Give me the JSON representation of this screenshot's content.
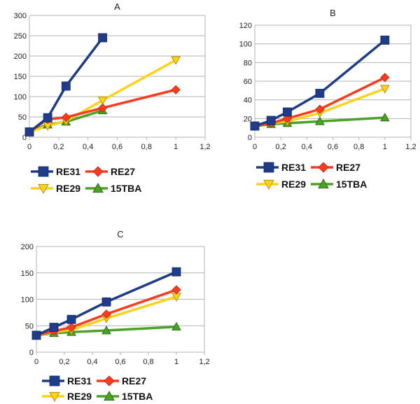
{
  "chart_data": [
    {
      "type": "line",
      "title": "A",
      "xlabel": "",
      "ylabel": "",
      "xlim": [
        0,
        1.2
      ],
      "ylim": [
        0,
        300
      ],
      "xticks": [
        "0",
        "0,2",
        "0,4",
        "0,6",
        "0,8",
        "1",
        "1,2"
      ],
      "yticks": [
        "0",
        "50",
        "100",
        "150",
        "200",
        "250",
        "300"
      ],
      "grid": "horizontal",
      "legend": "bottom",
      "series": [
        {
          "name": "RE31",
          "color": "#1f3c88",
          "marker": "square",
          "x": [
            0,
            0.125,
            0.25,
            0.5
          ],
          "y": [
            13,
            48,
            126,
            245
          ]
        },
        {
          "name": "RE27",
          "color": "#ff3b1f",
          "marker": "diamond",
          "x": [
            0,
            0.125,
            0.25,
            0.5,
            1
          ],
          "y": [
            13,
            44,
            49,
            72,
            117
          ]
        },
        {
          "name": "RE29",
          "color": "#ffd21a",
          "marker": "triangle-down",
          "x": [
            0,
            0.125,
            0.25,
            0.5,
            1
          ],
          "y": [
            13,
            28,
            40,
            91,
            190
          ]
        },
        {
          "name": "15TBA",
          "color": "#4aa326",
          "marker": "triangle-up",
          "x": [
            0,
            0.125,
            0.25,
            0.5
          ],
          "y": [
            13,
            31,
            38,
            66
          ]
        }
      ]
    },
    {
      "type": "line",
      "title": "B",
      "xlabel": "",
      "ylabel": "",
      "xlim": [
        0,
        1.2
      ],
      "ylim": [
        0,
        120
      ],
      "xticks": [
        "0",
        "0,2",
        "0,4",
        "0,6",
        "0,8",
        "1",
        "1,2"
      ],
      "yticks": [
        "0",
        "20",
        "40",
        "60",
        "80",
        "100",
        "120"
      ],
      "grid": "horizontal",
      "legend": "bottom",
      "series": [
        {
          "name": "RE31",
          "color": "#1f3c88",
          "marker": "square",
          "x": [
            0,
            0.125,
            0.25,
            0.5,
            1
          ],
          "y": [
            12,
            18,
            27,
            47,
            104
          ]
        },
        {
          "name": "RE27",
          "color": "#ff3b1f",
          "marker": "diamond",
          "x": [
            0,
            0.125,
            0.25,
            0.5,
            1
          ],
          "y": [
            12,
            15,
            20,
            30,
            64
          ]
        },
        {
          "name": "RE29",
          "color": "#ffd21a",
          "marker": "triangle-down",
          "x": [
            0,
            0.125,
            0.25,
            0.5,
            1
          ],
          "y": [
            12,
            15,
            17,
            26,
            52
          ]
        },
        {
          "name": "15TBA",
          "color": "#4aa326",
          "marker": "triangle-up",
          "x": [
            0,
            0.125,
            0.25,
            0.5,
            1
          ],
          "y": [
            12,
            14,
            15,
            17,
            21
          ]
        }
      ]
    },
    {
      "type": "line",
      "title": "C",
      "xlabel": "",
      "ylabel": "",
      "xlim": [
        0,
        1.2
      ],
      "ylim": [
        0,
        200
      ],
      "xticks": [
        "0",
        "0,2",
        "0,4",
        "0,6",
        "0,8",
        "1",
        "1,2"
      ],
      "yticks": [
        "0",
        "50",
        "100",
        "150",
        "200"
      ],
      "grid": "horizontal",
      "legend": "bottom",
      "series": [
        {
          "name": "RE31",
          "color": "#1f3c88",
          "marker": "square",
          "x": [
            0,
            0.125,
            0.25,
            0.5,
            1
          ],
          "y": [
            32,
            47,
            62,
            95,
            152
          ]
        },
        {
          "name": "RE27",
          "color": "#ff3b1f",
          "marker": "diamond",
          "x": [
            0,
            0.125,
            0.25,
            0.5,
            1
          ],
          "y": [
            32,
            40,
            47,
            72,
            118
          ]
        },
        {
          "name": "RE29",
          "color": "#ffd21a",
          "marker": "triangle-down",
          "x": [
            0,
            0.125,
            0.25,
            0.5,
            1
          ],
          "y": [
            32,
            38,
            42,
            64,
            105
          ]
        },
        {
          "name": "15TBA",
          "color": "#4aa326",
          "marker": "triangle-up",
          "x": [
            0,
            0.125,
            0.25,
            0.5,
            1
          ],
          "y": [
            32,
            36,
            38,
            41,
            48
          ]
        }
      ]
    }
  ]
}
